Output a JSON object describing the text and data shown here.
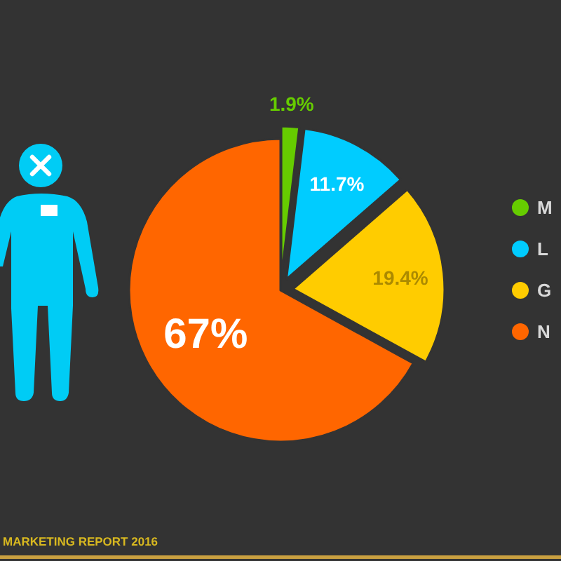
{
  "chart_data": {
    "type": "pie",
    "categories": [
      "M",
      "L",
      "G",
      "N"
    ],
    "values": [
      1.9,
      11.7,
      19.4,
      67
    ],
    "colors": [
      "#66cc00",
      "#00ccff",
      "#ffcc00",
      "#ff6600"
    ],
    "value_labels": [
      "1.9%",
      "11.7%",
      "19.4%",
      "67%"
    ],
    "legend": "right",
    "annotations": [
      "MARKETING REPORT 2016"
    ]
  }
}
